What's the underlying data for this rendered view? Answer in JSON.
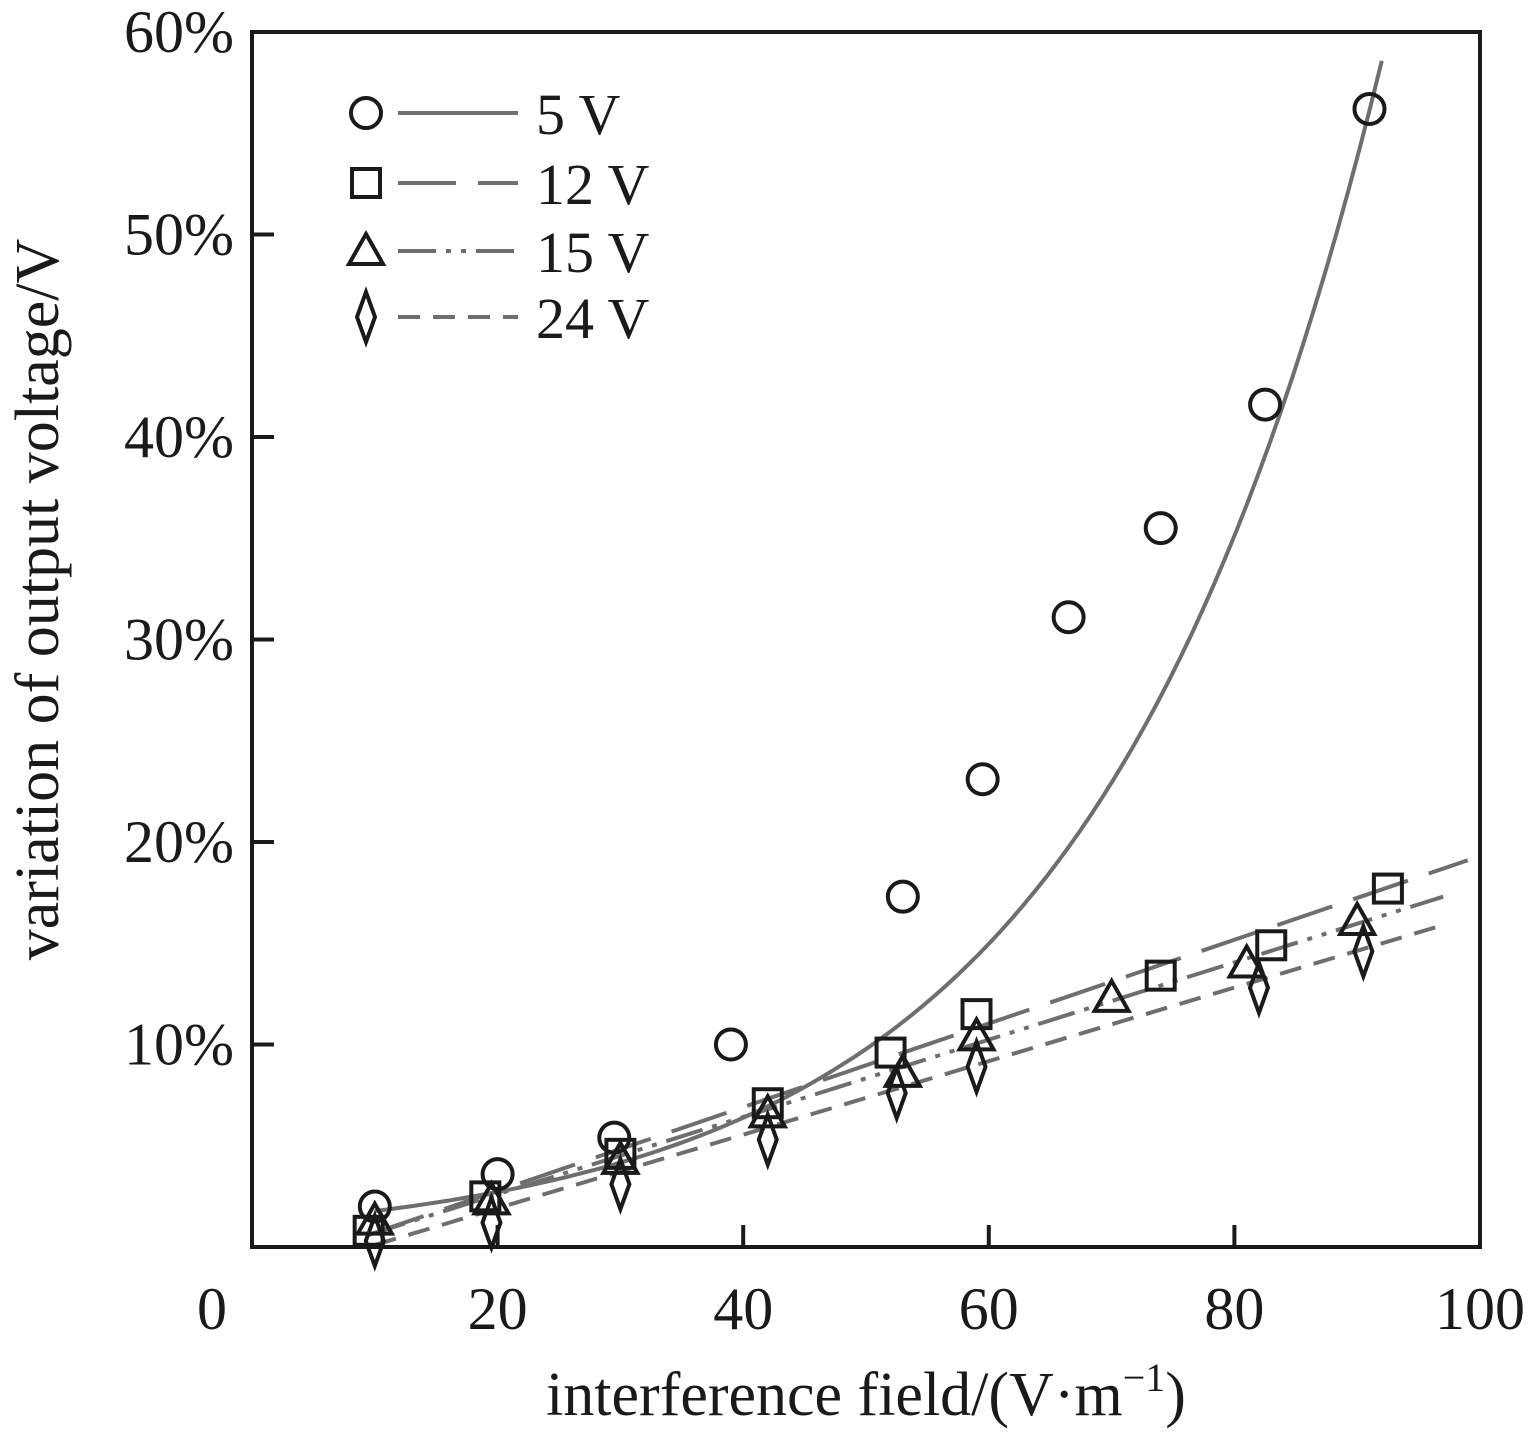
{
  "chart_data": {
    "type": "scatter",
    "title": "",
    "xlabel": "interference field/(V·m",
    "xlabel_superscript": "−1",
    "xlabel_close": ")",
    "ylabel": "variation of output voltage/V",
    "xlim": [
      0,
      100
    ],
    "ylim": [
      0,
      60
    ],
    "x_ticks": [
      0,
      20,
      40,
      60,
      80,
      100
    ],
    "x_tick_labels": [
      "0",
      "20",
      "40",
      "60",
      "80",
      "100"
    ],
    "y_ticks": [
      10,
      20,
      30,
      40,
      50,
      60
    ],
    "y_tick_labels": [
      "10%",
      "20%",
      "30%",
      "40%",
      "50%",
      "60%"
    ],
    "legend_position": "top-left",
    "series": [
      {
        "name": "5 V",
        "marker": "circle",
        "line_style": "solid",
        "x": [
          10,
          20,
          29.5,
          39,
          53,
          59.5,
          66.5,
          74,
          82.5,
          91
        ],
        "y": [
          2,
          3.6,
          5.4,
          10,
          17.3,
          23.1,
          31.1,
          35.5,
          41.6,
          56.2
        ],
        "fit": {
          "kind": "exponential",
          "a": 1.16,
          "b": 0.04263,
          "x_range": [
            10,
            92
          ]
        }
      },
      {
        "name": "12 V",
        "marker": "square",
        "line_style": "long-dash",
        "x": [
          9.5,
          19,
          30,
          42,
          52,
          59,
          74,
          83,
          92.5
        ],
        "y": [
          0.8,
          2.5,
          4.6,
          7.1,
          9.6,
          11.5,
          13.4,
          14.9,
          17.7
        ],
        "fit": {
          "kind": "linear",
          "x_range": [
            9.5,
            99
          ],
          "y_range": [
            0.6,
            19.1
          ]
        }
      },
      {
        "name": "15 V",
        "marker": "triangle",
        "line_style": "dash-dot-dot",
        "x": [
          10,
          19.5,
          30,
          42,
          53,
          59,
          70,
          81,
          90
        ],
        "y": [
          1.3,
          2.3,
          4.3,
          6.6,
          8.6,
          10.4,
          12.3,
          14,
          16.1
        ],
        "fit": {
          "kind": "linear",
          "x_range": [
            9.5,
            97
          ],
          "y_range": [
            0.6,
            17.3
          ]
        }
      },
      {
        "name": "24 V",
        "marker": "diamond",
        "line_style": "dash",
        "x": [
          10,
          19.5,
          30,
          42,
          52.5,
          59,
          82,
          90.5
        ],
        "y": [
          0.3,
          1.2,
          3.1,
          5.3,
          7.6,
          8.9,
          12.8,
          14.6
        ],
        "fit": {
          "kind": "linear",
          "x_range": [
            10,
            97
          ],
          "y_range": [
            0.1,
            15.9
          ]
        }
      }
    ]
  },
  "colors": {
    "axis": "#1a1a1a",
    "fit_line": "#6e6e6e",
    "marker": "#1a1a1a"
  }
}
